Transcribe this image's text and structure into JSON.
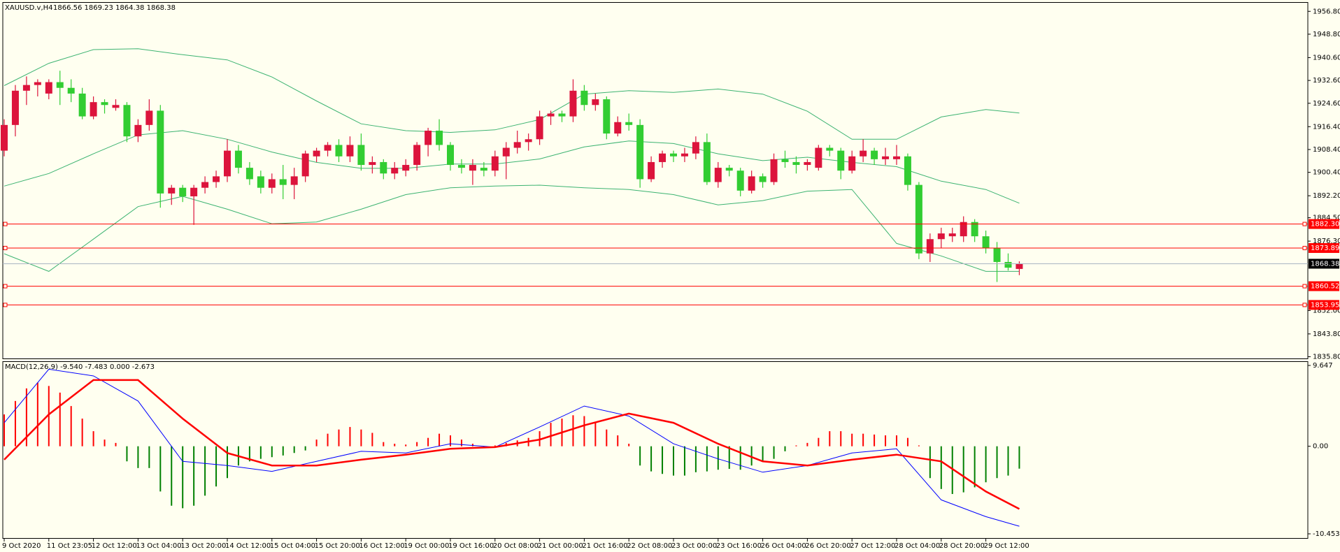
{
  "chart_data": [
    {
      "type": "candlestick",
      "title": "XAUUSD.v,H4",
      "subtitle": "1866.56 1869.23 1864.38 1868.38",
      "categories": [
        "9 Oct 2020",
        null,
        null,
        null,
        "11 Oct 23:05",
        null,
        null,
        null,
        "12 Oct 12:00",
        null,
        null,
        null,
        "13 Oct 04:00",
        null,
        null,
        null,
        "13 Oct 20:00",
        null,
        null,
        null,
        "14 Oct 12:00",
        null,
        null,
        null,
        "15 Oct 04:00",
        null,
        null,
        null,
        "15 Oct 20:00",
        null,
        null,
        null,
        "16 Oct 12:00",
        null,
        null,
        null,
        "19 Oct 00:00",
        null,
        null,
        null,
        "19 Oct 16:00",
        null,
        null,
        null,
        "20 Oct 08:00",
        null,
        null,
        null,
        "21 Oct 00:00",
        null,
        null,
        null,
        "21 Oct 16:00",
        null,
        null,
        null,
        "22 Oct 08:00",
        null,
        null,
        null,
        "23 Oct 00:00",
        null,
        null,
        null,
        "23 Oct 16:00",
        null,
        null,
        null,
        "26 Oct 04:00",
        null,
        null,
        null,
        "26 Oct 20:00",
        null,
        null,
        null,
        "27 Oct 12:00",
        null,
        null,
        null,
        "28 Oct 04:00",
        null,
        null,
        null,
        "28 Oct 20:00",
        null,
        null,
        null,
        "29 Oct 12:00",
        null,
        null,
        null
      ],
      "open": [
        1908,
        1917,
        1929,
        1931,
        1928,
        1932,
        1930,
        1928,
        1920,
        1925,
        1923,
        1924,
        1913,
        1917,
        1922,
        1893,
        1895,
        1892,
        1895,
        1897,
        1899,
        1908,
        1902,
        1899,
        1895,
        1898,
        1896,
        1899,
        1906,
        1908,
        1910,
        1906,
        1910,
        1903,
        1904,
        1900,
        1901,
        1903,
        1910,
        1915,
        1910,
        1903,
        1901,
        1902,
        1901,
        1906,
        1909,
        1911,
        1912,
        1920,
        1921,
        1920,
        1929,
        1924,
        1926,
        1914,
        1918,
        1917,
        1898,
        1904,
        1907,
        1906,
        1907,
        1911,
        1897,
        1902,
        1901,
        1894,
        1899,
        1897,
        1905,
        1904,
        1903,
        1902,
        1909,
        1908,
        1901,
        1906,
        1908,
        1905,
        1905,
        1906,
        1896,
        1872,
        1877,
        1878,
        1878,
        1883,
        1878,
        1874,
        1869,
        1866.56
      ],
      "high": [
        1919,
        1931,
        1934,
        1933,
        1933,
        1936,
        1933,
        1930,
        1927,
        1926,
        1926,
        1925,
        1919,
        1926,
        1924,
        1896,
        1896,
        1896,
        1899,
        1901,
        1912,
        1910,
        1904,
        1901,
        1900,
        1903,
        1902,
        1908,
        1909,
        1911,
        1912,
        1913,
        1914,
        1906,
        1905,
        1904,
        1905,
        1911,
        1916,
        1919,
        1911,
        1905,
        1905,
        1904,
        1908,
        1911,
        1915,
        1914,
        1922,
        1922,
        1922,
        1933,
        1931,
        1928,
        1927,
        1920,
        1921,
        1919,
        1906,
        1908,
        1908,
        1909,
        1913,
        1914,
        1904,
        1903,
        1902,
        1901,
        1900,
        1907,
        1908,
        1906,
        1905,
        1910,
        1910,
        1909,
        1908,
        1912,
        1909,
        1909,
        1910,
        1907,
        1897,
        1879,
        1881,
        1881,
        1885,
        1884,
        1880,
        1876,
        1872,
        1869.23
      ],
      "low": [
        1906,
        1913,
        1924,
        1927,
        1926,
        1924,
        1925,
        1919,
        1919,
        1921,
        1922,
        1911,
        1911,
        1915,
        1888,
        1889,
        1890,
        1882,
        1893,
        1895,
        1897,
        1900,
        1896,
        1893,
        1893,
        1891,
        1891,
        1897,
        1904,
        1906,
        1904,
        1904,
        1901,
        1900,
        1898,
        1898,
        1899,
        1901,
        1906,
        1908,
        1901,
        1900,
        1896,
        1899,
        1899,
        1898,
        1907,
        1908,
        1910,
        1917,
        1918,
        1918,
        1922,
        1922,
        1912,
        1913,
        1915,
        1895,
        1897,
        1902,
        1904,
        1904,
        1905,
        1896,
        1895,
        1899,
        1892,
        1893,
        1895,
        1896,
        1902,
        1900,
        1901,
        1901,
        1906,
        1898,
        1900,
        1904,
        1903,
        1903,
        1903,
        1894,
        1870,
        1869,
        1874,
        1876,
        1876,
        1876,
        1872,
        1862,
        1866,
        1864.38
      ],
      "close": [
        1917,
        1929,
        1931,
        1932,
        1932,
        1930,
        1928,
        1920,
        1925,
        1924,
        1924,
        1913,
        1917,
        1922,
        1893,
        1895,
        1892,
        1895,
        1897,
        1899,
        1908,
        1902,
        1898,
        1895,
        1898,
        1896,
        1899,
        1907,
        1908,
        1910,
        1906,
        1910,
        1903,
        1904,
        1900,
        1902,
        1903,
        1910,
        1915,
        1910,
        1903,
        1902,
        1903,
        1901,
        1906,
        1909,
        1911,
        1912,
        1920,
        1921,
        1920,
        1929,
        1924,
        1926,
        1914,
        1918,
        1917,
        1898,
        1904,
        1907,
        1906,
        1907,
        1911,
        1897,
        1902,
        1901,
        1894,
        1899,
        1897,
        1905,
        1904,
        1903,
        1904,
        1909,
        1908,
        1901,
        1906,
        1908,
        1905,
        1906,
        1906,
        1896,
        1872,
        1877,
        1879,
        1879,
        1883,
        1878,
        1874,
        1869,
        1867,
        1868.38
      ],
      "up_color": "#dc143c",
      "down_color": "#32cd32",
      "bands": [
        {
          "color": "#3cb371",
          "x": [
            0,
            4,
            8,
            12,
            16,
            20,
            24,
            28,
            32,
            36,
            40,
            44,
            48,
            52,
            56,
            60,
            64,
            68,
            72,
            76,
            80,
            84,
            88,
            91
          ],
          "values": [
            1930.8,
            1938.6,
            1943.4,
            1943.7,
            1941.6,
            1939.8,
            1933.8,
            1925.4,
            1917.4,
            1915.0,
            1914.4,
            1915.3,
            1918.9,
            1927.8,
            1929.0,
            1928.4,
            1929.6,
            1927.8,
            1921.8,
            1912.0,
            1912.0,
            1919.8,
            1922.4,
            1921.2
          ]
        },
        {
          "color": "#3cb371",
          "x": [
            0,
            4,
            8,
            12,
            16,
            20,
            24,
            28,
            32,
            36,
            40,
            44,
            48,
            52,
            56,
            60,
            64,
            68,
            72,
            76,
            80,
            84,
            88,
            91
          ],
          "values": [
            1895.6,
            1900.0,
            1906.9,
            1913.5,
            1915.0,
            1912.0,
            1907.5,
            1903.9,
            1901.8,
            1901.8,
            1903.3,
            1903.3,
            1905.1,
            1909.3,
            1911.4,
            1910.5,
            1906.9,
            1904.5,
            1905.7,
            1903.9,
            1902.4,
            1897.3,
            1894.4,
            1889.6
          ]
        },
        {
          "color": "#3cb371",
          "x": [
            0,
            4,
            8,
            12,
            16,
            20,
            24,
            28,
            32,
            36,
            40,
            44,
            48,
            52,
            56,
            60,
            64,
            68,
            72,
            76,
            80,
            84,
            88,
            91
          ],
          "values": [
            1871.9,
            1865.7,
            1877.0,
            1888.4,
            1892.0,
            1887.5,
            1882.4,
            1883.0,
            1887.5,
            1892.6,
            1895.0,
            1895.6,
            1895.9,
            1895.0,
            1894.4,
            1892.6,
            1889.0,
            1890.5,
            1893.8,
            1894.4,
            1875.5,
            1871.1,
            1865.7,
            1865.7
          ]
        }
      ],
      "ylim": [
        1835.2,
        1959.8
      ],
      "yticks": [
        {
          "value": 1956.8,
          "label": "1956.80"
        },
        {
          "value": 1948.8,
          "label": "1948.80"
        },
        {
          "value": 1940.6,
          "label": "1940.60"
        },
        {
          "value": 1932.6,
          "label": "1932.60"
        },
        {
          "value": 1924.6,
          "label": "1924.60"
        },
        {
          "value": 1916.4,
          "label": "1916.40"
        },
        {
          "value": 1908.4,
          "label": "1908.40"
        },
        {
          "value": 1900.4,
          "label": "1900.40"
        },
        {
          "value": 1892.2,
          "label": "1892.20"
        },
        {
          "value": 1884.5,
          "label": "1884.50"
        },
        {
          "value": 1876.3,
          "label": "1876.30"
        },
        {
          "value": 1852,
          "label": "1852.00"
        },
        {
          "value": 1843.8,
          "label": "1843.80"
        },
        {
          "value": 1835.8,
          "label": "1835.80"
        }
      ],
      "hlines": [
        {
          "value": 1882.3,
          "label": "1882.30",
          "color": "#ff0000"
        },
        {
          "value": 1873.89,
          "label": "1873.89",
          "color": "#ff0000"
        },
        {
          "value": 1860.52,
          "label": "1860.52",
          "color": "#ff0000"
        },
        {
          "value": 1853.95,
          "label": "1853.95",
          "color": "#ff0000"
        }
      ],
      "last_price": 1868.38,
      "last_price_color": "#a9b4c2",
      "background": "#fffff0"
    },
    {
      "type": "macd",
      "title": "MACD(12,26,9) -9.540 -7.483 0.000 -2.673",
      "ylim": [
        -10.453,
        9.647
      ],
      "yticks": [
        9.647,
        {
          "value": 0,
          "label": "0.00"
        },
        -10.453
      ],
      "histogram": {
        "values": [
          3.8,
          5.4,
          6.9,
          7.6,
          7.2,
          6.4,
          4.8,
          3.3,
          1.8,
          0.8,
          0.4,
          -1.8,
          -2.6,
          -2.6,
          -5.4,
          -7.1,
          -7.4,
          -7.1,
          -5.9,
          -4.8,
          -3.8,
          -2.3,
          -1.8,
          -1.5,
          -1.3,
          -1.1,
          -0.8,
          -0.5,
          0.8,
          1.5,
          2.0,
          2.3,
          2.0,
          1.6,
          0.5,
          0.3,
          0.2,
          0.5,
          1.0,
          1.5,
          1.3,
          0.8,
          0.3,
          -0.2,
          0.1,
          0.4,
          0.7,
          1.0,
          1.8,
          2.8,
          3.3,
          3.7,
          3.6,
          2.8,
          2.0,
          1.3,
          0.3,
          -2.3,
          -3.0,
          -3.3,
          -3.5,
          -3.5,
          -3.1,
          -3.0,
          -2.8,
          -2.7,
          -2.8,
          -2.3,
          -1.8,
          -1.5,
          -0.6,
          0.1,
          0.4,
          1.0,
          1.8,
          1.8,
          1.5,
          1.5,
          1.4,
          1.3,
          1.3,
          1.0,
          0.1,
          -3.8,
          -5.1,
          -5.7,
          -5.5,
          -4.9,
          -4.3,
          -3.8,
          -3.5,
          -2.673
        ],
        "positive_color": "#ff0000",
        "negative_color": "#008000"
      },
      "series": [
        {
          "color": "#0000ff",
          "width": 1,
          "x": [
            0,
            4,
            8,
            12,
            16,
            20,
            24,
            28,
            32,
            36,
            40,
            44,
            48,
            52,
            56,
            60,
            64,
            68,
            72,
            76,
            80,
            84,
            88,
            91
          ],
          "values": [
            2.8,
            9.2,
            8.4,
            5.4,
            -1.8,
            -2.3,
            -3.0,
            -1.8,
            -0.6,
            -0.8,
            0.3,
            -0.1,
            2.3,
            4.8,
            3.6,
            0.3,
            -1.5,
            -3.1,
            -2.3,
            -0.8,
            -0.3,
            -6.4,
            -8.4,
            -9.54
          ]
        },
        {
          "color": "#ff0000",
          "width": 2.5,
          "x": [
            0,
            4,
            8,
            12,
            16,
            20,
            24,
            28,
            32,
            36,
            40,
            44,
            48,
            52,
            56,
            60,
            64,
            68,
            72,
            76,
            80,
            84,
            88,
            91
          ],
          "values": [
            -1.6,
            3.8,
            7.9,
            7.9,
            3.3,
            -0.8,
            -2.3,
            -2.3,
            -1.6,
            -1.0,
            -0.3,
            -0.1,
            0.8,
            2.5,
            3.9,
            2.8,
            0.3,
            -1.8,
            -2.3,
            -1.6,
            -1.0,
            -1.8,
            -5.4,
            -7.483
          ]
        }
      ]
    }
  ]
}
